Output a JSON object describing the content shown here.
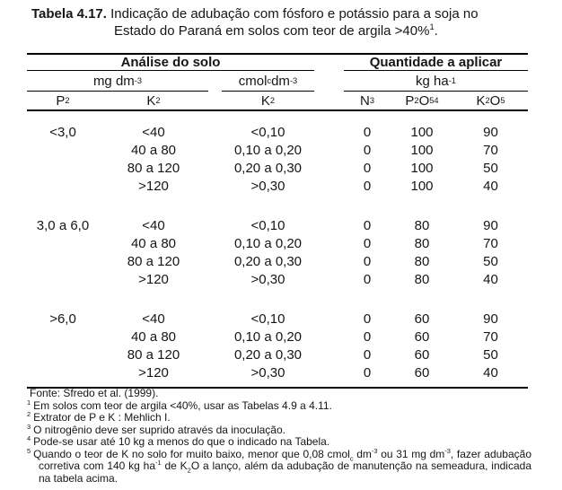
{
  "title": {
    "prefix": "Tabela 4.17.",
    "line1": "Indicação de adubação com fósforo e potássio para a soja no",
    "line2": "Estado do Paraná em solos com teor de argila >40%^{1}."
  },
  "table": {
    "group_headers": {
      "left": "Análise do solo",
      "right": "Quantidade a aplicar"
    },
    "unit_headers": {
      "mg": "mg dm^{-3}",
      "cmol": "cmol_{c} dm^{-3}",
      "kg": "kg ha^{-1}"
    },
    "col_headers": [
      "P^{2}",
      "K^{2}",
      "K^{2}",
      "N^{3}",
      "P_{2}O_{5}^{4}",
      "K_{2}O^{5}"
    ],
    "groups": [
      {
        "p": "<3,0",
        "rows": [
          [
            "<40",
            "<0,10",
            "0",
            "100",
            "90"
          ],
          [
            "40 a 80",
            "0,10 a 0,20",
            "0",
            "100",
            "70"
          ],
          [
            "80 a 120",
            "0,20 a 0,30",
            "0",
            "100",
            "50"
          ],
          [
            ">120",
            ">0,30",
            "0",
            "100",
            "40"
          ]
        ]
      },
      {
        "p": "3,0 a 6,0",
        "rows": [
          [
            "<40",
            "<0,10",
            "0",
            "80",
            "90"
          ],
          [
            "40 a 80",
            "0,10 a 0,20",
            "0",
            "80",
            "70"
          ],
          [
            "80 a 120",
            "0,20 a 0,30",
            "0",
            "80",
            "50"
          ],
          [
            ">120",
            ">0,30",
            "0",
            "80",
            "40"
          ]
        ]
      },
      {
        "p": ">6,0",
        "rows": [
          [
            "<40",
            "<0,10",
            "0",
            "60",
            "90"
          ],
          [
            "40 a 80",
            "0,10 a 0,20",
            "0",
            "60",
            "70"
          ],
          [
            "80 a 120",
            "0,20 a 0,30",
            "0",
            "60",
            "50"
          ],
          [
            ">120",
            ">0,30",
            "0",
            "60",
            "40"
          ]
        ]
      }
    ]
  },
  "footnotes": {
    "fonte": "Fonte: Sfredo et al. (1999).",
    "items": [
      {
        "marker": "1",
        "text": "Em solos com teor de argila <40%, usar as Tabelas 4.9 a 4.11."
      },
      {
        "marker": "2",
        "text": "Extrator de P e K : Mehlich I."
      },
      {
        "marker": "3",
        "text": "O nitrogênio deve ser suprido através da inoculação."
      },
      {
        "marker": "4",
        "text": "Pode-se usar até 10 kg a menos do que o indicado na Tabela."
      },
      {
        "marker": "5",
        "text": "Quando o teor de K no solo for muito baixo, menor que 0,08 cmol_{c} dm^{-3} ou 31 mg dm^{-3}, fazer adubação corretiva com 140 kg ha^{-1} de K_{2}O a lanço, além da adubação de manutenção na semeadura, indicada na tabela acima."
      }
    ]
  }
}
